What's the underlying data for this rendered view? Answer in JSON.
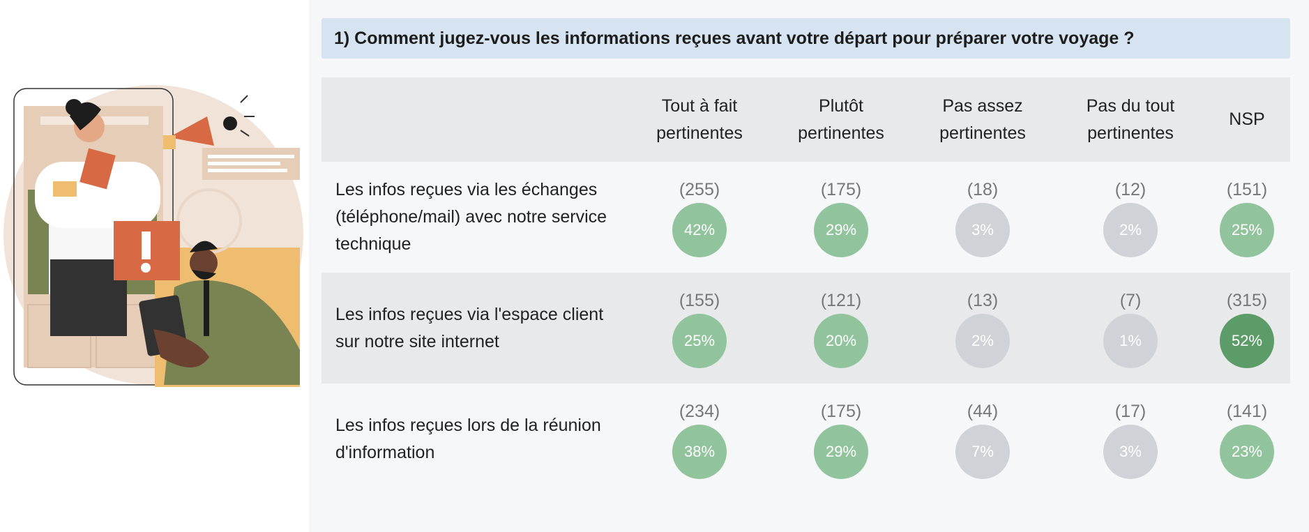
{
  "question": "1) Comment jugez-vous les informations reçues avant votre départ pour préparer votre voyage ?",
  "columns": [
    {
      "line1": "Tout à fait",
      "line2": "pertinentes"
    },
    {
      "line1": "Plutôt",
      "line2": "pertinentes"
    },
    {
      "line1": "Pas assez",
      "line2": "pertinentes"
    },
    {
      "line1": "Pas du tout",
      "line2": "pertinentes"
    },
    {
      "line1": "NSP",
      "line2": ""
    }
  ],
  "rows": [
    {
      "label": "Les infos reçues via les échanges (téléphone/mail) avec notre service technique",
      "cells": [
        {
          "count": "(255)",
          "pct": "42%",
          "level": "mid"
        },
        {
          "count": "(175)",
          "pct": "29%",
          "level": "mid"
        },
        {
          "count": "(18)",
          "pct": "3%",
          "level": "low"
        },
        {
          "count": "(12)",
          "pct": "2%",
          "level": "low"
        },
        {
          "count": "(151)",
          "pct": "25%",
          "level": "mid"
        }
      ]
    },
    {
      "label": "Les infos reçues via l'espace client sur notre site internet",
      "cells": [
        {
          "count": "(155)",
          "pct": "25%",
          "level": "mid"
        },
        {
          "count": "(121)",
          "pct": "20%",
          "level": "mid"
        },
        {
          "count": "(13)",
          "pct": "2%",
          "level": "low"
        },
        {
          "count": "(7)",
          "pct": "1%",
          "level": "low"
        },
        {
          "count": "(315)",
          "pct": "52%",
          "level": "high"
        }
      ]
    },
    {
      "label": "Les infos reçues lors de la réunion d'information",
      "cells": [
        {
          "count": "(234)",
          "pct": "38%",
          "level": "mid"
        },
        {
          "count": "(175)",
          "pct": "29%",
          "level": "mid"
        },
        {
          "count": "(44)",
          "pct": "7%",
          "level": "low"
        },
        {
          "count": "(17)",
          "pct": "3%",
          "level": "low"
        },
        {
          "count": "(141)",
          "pct": "23%",
          "level": "mid"
        }
      ]
    }
  ],
  "colors": {
    "question_bg": "#d6e4f1",
    "mid": "#91c39c",
    "high": "#5c9c68",
    "low": "#cfd3d8"
  },
  "illustration_icon": "megaphone-alert-illustration"
}
